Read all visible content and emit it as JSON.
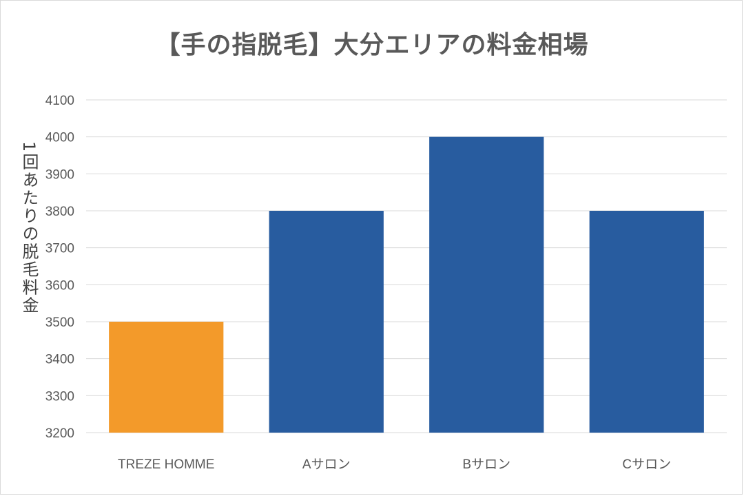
{
  "chart_data": {
    "type": "bar",
    "title": "【手の指脱毛】大分エリアの料金相場",
    "ylabel": "1回あたりの脱毛料金",
    "xlabel": "",
    "categories": [
      "TREZE HOMME",
      "Aサロン",
      "Bサロン",
      "Cサロン"
    ],
    "values": [
      3500,
      3800,
      4000,
      3800
    ],
    "bar_colors": [
      "#F39A2A",
      "#285C9F",
      "#285C9F",
      "#285C9F"
    ],
    "ylim": [
      3200,
      4100
    ],
    "yticks": [
      3200,
      3300,
      3400,
      3500,
      3600,
      3700,
      3800,
      3900,
      4000,
      4100
    ],
    "grid": true,
    "legend": "none"
  },
  "colors": {
    "gridline": "#d9d9d9",
    "text": "#595959"
  }
}
